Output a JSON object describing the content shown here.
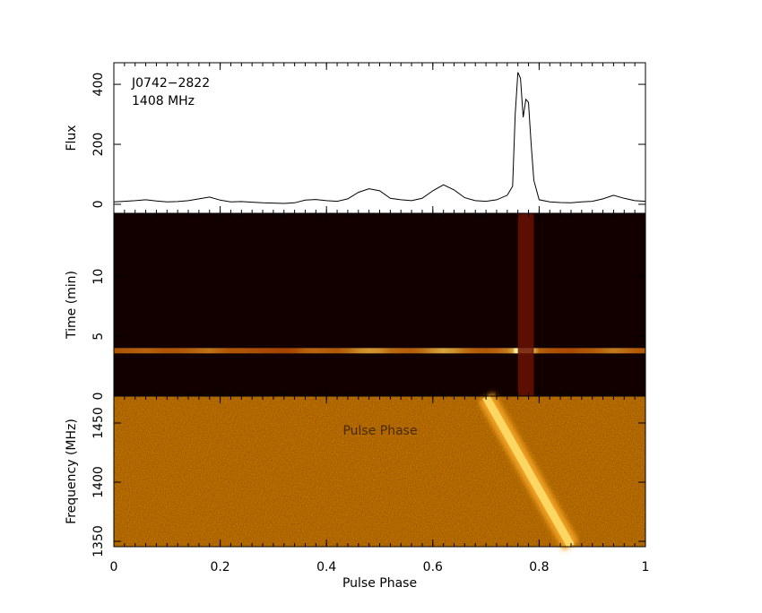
{
  "chart_data": [
    {
      "type": "line",
      "ylabel": "Flux",
      "annotations": [
        "J0742−2822",
        "1408 MHz"
      ],
      "color": "#000000",
      "xlim": [
        0,
        1
      ],
      "ylim": [
        -30,
        472
      ],
      "yticks": [
        0,
        200,
        400
      ],
      "x": [
        0,
        0.02,
        0.04,
        0.06,
        0.08,
        0.1,
        0.12,
        0.14,
        0.16,
        0.18,
        0.2,
        0.22,
        0.24,
        0.26,
        0.28,
        0.3,
        0.32,
        0.34,
        0.36,
        0.38,
        0.4,
        0.42,
        0.44,
        0.46,
        0.48,
        0.5,
        0.52,
        0.54,
        0.56,
        0.58,
        0.6,
        0.62,
        0.64,
        0.66,
        0.68,
        0.7,
        0.72,
        0.74,
        0.75,
        0.755,
        0.76,
        0.765,
        0.77,
        0.775,
        0.78,
        0.785,
        0.79,
        0.8,
        0.82,
        0.84,
        0.86,
        0.88,
        0.9,
        0.92,
        0.94,
        0.96,
        0.98,
        1
      ],
      "values": [
        8,
        10,
        12,
        15,
        11,
        8,
        9,
        12,
        18,
        24,
        14,
        8,
        9,
        7,
        5,
        4,
        3,
        5,
        14,
        16,
        12,
        10,
        18,
        40,
        52,
        45,
        20,
        15,
        12,
        20,
        45,
        65,
        48,
        22,
        12,
        10,
        15,
        30,
        60,
        300,
        440,
        420,
        290,
        350,
        340,
        200,
        80,
        15,
        8,
        6,
        5,
        8,
        10,
        18,
        30,
        20,
        12,
        10
      ]
    },
    {
      "type": "image",
      "ylabel": "Time (min)",
      "xlim": [
        0,
        1
      ],
      "ylim": [
        0,
        15.3
      ],
      "yticks": [
        0,
        5,
        10
      ],
      "bright_time": 3.8,
      "on_pulse": [
        0.76,
        0.79
      ]
    },
    {
      "type": "image",
      "ylabel": "Frequency (MHz)",
      "xlabel": "Pulse Phase",
      "annotations": [
        "Pulse Phase"
      ],
      "xlim": [
        0,
        1
      ],
      "xticks": [
        0,
        0.2,
        0.4,
        0.6,
        0.8,
        1
      ],
      "ylim": [
        1345.5,
        1472.7
      ],
      "yticks": [
        1350,
        1400,
        1450
      ],
      "track": {
        "phase": [
          0.7,
          0.86
        ],
        "freq": [
          1472,
          1346
        ]
      }
    }
  ]
}
